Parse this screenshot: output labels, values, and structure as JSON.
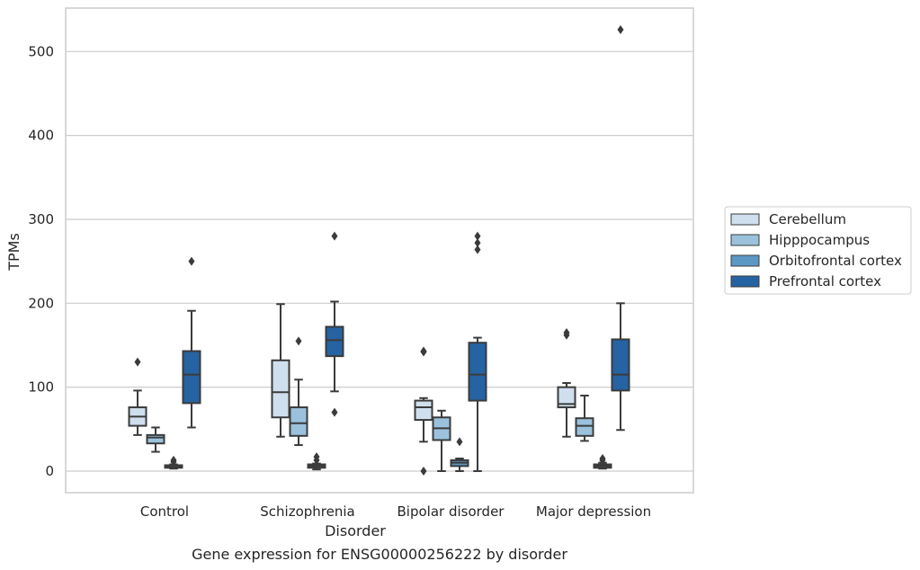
{
  "chart_data": {
    "type": "box",
    "xlabel": "Disorder",
    "ylabel": "TPMs",
    "caption": "Gene expression for ENSG00000256222 by disorder",
    "categories": [
      "Control",
      "Schizophrenia",
      "Bipolar disorder",
      "Major depression"
    ],
    "y_ticks": [
      0,
      100,
      200,
      300,
      400,
      500
    ],
    "ylim": [
      -25,
      555
    ],
    "grid": "horizontal",
    "legend_position": "right",
    "series": [
      {
        "name": "Cerebellum",
        "color": "#cfdfee",
        "boxes": [
          {
            "whisker_low": 43,
            "q1": 54,
            "median": 65,
            "q3": 76,
            "whisker_high": 96,
            "outliers": [
              130
            ]
          },
          {
            "whisker_low": 41,
            "q1": 64,
            "median": 94,
            "q3": 132,
            "whisker_high": 199,
            "outliers": []
          },
          {
            "whisker_low": 35,
            "q1": 61,
            "median": 76,
            "q3": 84,
            "whisker_high": 87,
            "outliers": [
              142,
              143,
              0
            ]
          },
          {
            "whisker_low": 41,
            "q1": 76,
            "median": 80,
            "q3": 100,
            "whisker_high": 105,
            "outliers": [
              162,
              165
            ]
          }
        ]
      },
      {
        "name": "Hipppocampus",
        "color": "#9ac2dc",
        "boxes": [
          {
            "whisker_low": 23,
            "q1": 33,
            "median": 40,
            "q3": 43,
            "whisker_high": 52,
            "outliers": []
          },
          {
            "whisker_low": 31,
            "q1": 42,
            "median": 57,
            "q3": 76,
            "whisker_high": 109,
            "outliers": [
              155
            ]
          },
          {
            "whisker_low": 0,
            "q1": 37,
            "median": 51,
            "q3": 64,
            "whisker_high": 72,
            "outliers": []
          },
          {
            "whisker_low": 36,
            "q1": 42,
            "median": 54,
            "q3": 63,
            "whisker_high": 90,
            "outliers": []
          }
        ]
      },
      {
        "name": "Orbitofrontal cortex",
        "color": "#5c98c6",
        "boxes": [
          {
            "whisker_low": 3,
            "q1": 4,
            "median": 5,
            "q3": 7,
            "whisker_high": 8,
            "outliers": [
              11,
              13
            ]
          },
          {
            "whisker_low": 2,
            "q1": 4,
            "median": 6,
            "q3": 8,
            "whisker_high": 9,
            "outliers": [
              13,
              17
            ]
          },
          {
            "whisker_low": 0,
            "q1": 6,
            "median": 10,
            "q3": 13,
            "whisker_high": 15,
            "outliers": [
              35
            ]
          },
          {
            "whisker_low": 3,
            "q1": 4,
            "median": 6,
            "q3": 8,
            "whisker_high": 10,
            "outliers": [
              13,
              15
            ]
          }
        ]
      },
      {
        "name": "Prefrontal cortex",
        "color": "#2563a2",
        "boxes": [
          {
            "whisker_low": 52,
            "q1": 81,
            "median": 115,
            "q3": 143,
            "whisker_high": 191,
            "outliers": [
              250
            ]
          },
          {
            "whisker_low": 95,
            "q1": 137,
            "median": 156,
            "q3": 172,
            "whisker_high": 202,
            "outliers": [
              280,
              70
            ]
          },
          {
            "whisker_low": 0,
            "q1": 84,
            "median": 115,
            "q3": 153,
            "whisker_high": 159,
            "outliers": [
              264,
              272,
              280
            ]
          },
          {
            "whisker_low": 49,
            "q1": 96,
            "median": 115,
            "q3": 157,
            "whisker_high": 200,
            "outliers": [
              526
            ]
          }
        ]
      }
    ]
  }
}
